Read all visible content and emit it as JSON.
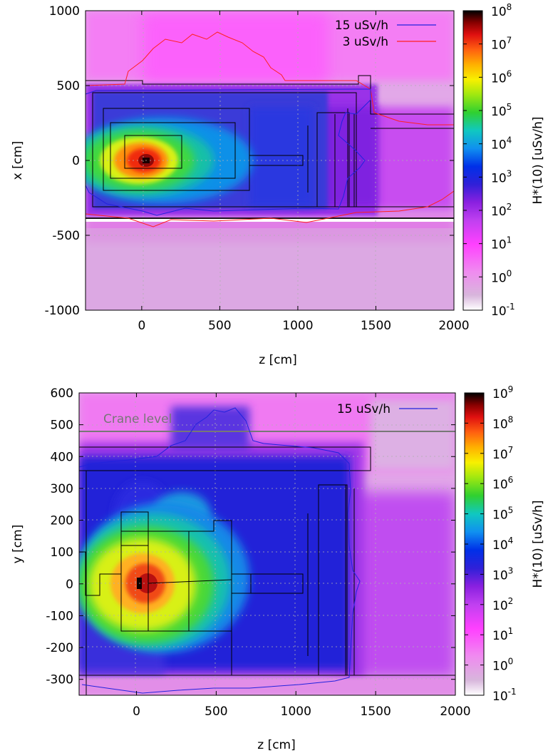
{
  "chart_data": [
    {
      "type": "heatmap",
      "xlabel": "z [cm]",
      "ylabel": "x [cm]",
      "xlim": [
        -360,
        2000
      ],
      "ylim": [
        -1000,
        1000
      ],
      "xticks": [
        "0",
        "500",
        "1000",
        "1500",
        "2000"
      ],
      "yticks": [
        "1000",
        "500",
        "0",
        "-500",
        "-1000"
      ],
      "colorbar_label": "H*(10) [uSv/h]",
      "colorbar_ticks": [
        "10^8",
        "10^7",
        "10^6",
        "10^5",
        "10^4",
        "10^3",
        "10^2",
        "10^1",
        "10^0",
        "10^-1"
      ],
      "colorbar_range_log10": [
        -1,
        8
      ],
      "source_peak": {
        "z": 50,
        "x": 0
      },
      "log_dose_samples": [
        {
          "z": 50,
          "x": 0,
          "log10": 8.0
        },
        {
          "z": 300,
          "x": 0,
          "log10": 4.5
        },
        {
          "z": 600,
          "x": 0,
          "log10": 3.3
        },
        {
          "z": 900,
          "x": 0,
          "log10": 2.2
        },
        {
          "z": 1500,
          "x": 0,
          "log10": 1.5
        },
        {
          "z": 1900,
          "x": 0,
          "log10": 1.3
        },
        {
          "z": 500,
          "x": 700,
          "log10": 0.9
        },
        {
          "z": 500,
          "x": -700,
          "log10": 0.3
        },
        {
          "z": -300,
          "x": 0,
          "log10": 4.3
        }
      ],
      "legend": [
        {
          "label": "15 uSv/h",
          "color": "#2222dd"
        },
        {
          "label": "3 uSv/h",
          "color": "#ff2020"
        }
      ],
      "grid": true,
      "legend_position": "top-right"
    },
    {
      "type": "heatmap",
      "xlabel": "z [cm]",
      "ylabel": "y [cm]",
      "xlim": [
        -360,
        2000
      ],
      "ylim": [
        -350,
        600
      ],
      "xticks": [
        "0",
        "500",
        "1000",
        "1500",
        "2000"
      ],
      "yticks": [
        "600",
        "500",
        "400",
        "300",
        "200",
        "100",
        "0",
        "-100",
        "-200",
        "-300"
      ],
      "colorbar_label": "H*(10) [uSv/h]",
      "colorbar_ticks": [
        "10^9",
        "10^8",
        "10^7",
        "10^6",
        "10^5",
        "10^4",
        "10^3",
        "10^2",
        "10^1",
        "10^0",
        "10^-1"
      ],
      "colorbar_range_log10": [
        -1,
        9
      ],
      "source_peak": {
        "z": 50,
        "y": 0
      },
      "log_dose_samples": [
        {
          "z": 50,
          "y": 0,
          "log10": 9.0
        },
        {
          "z": 300,
          "y": 0,
          "log10": 5.2
        },
        {
          "z": 600,
          "y": 0,
          "log10": 3.0
        },
        {
          "z": 1200,
          "y": 0,
          "log10": 2.0
        },
        {
          "z": 1800,
          "y": 0,
          "log10": 1.4
        },
        {
          "z": 500,
          "y": 400,
          "log10": 2.0
        },
        {
          "z": 500,
          "y": 550,
          "log10": 1.0
        },
        {
          "z": -300,
          "y": -100,
          "log10": 5.0
        }
      ],
      "legend": [
        {
          "label": "15 uSv/h",
          "color": "#2222dd"
        }
      ],
      "annotation": {
        "text": "Crane level",
        "y": 480
      },
      "grid": true,
      "legend_position": "top-right"
    }
  ]
}
